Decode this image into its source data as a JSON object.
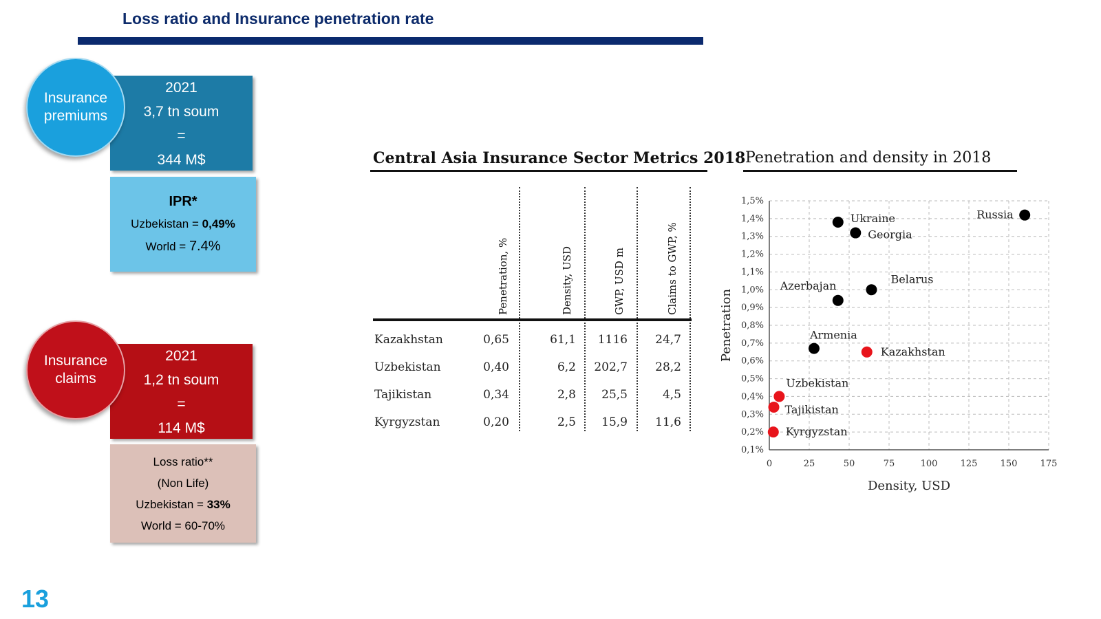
{
  "header": {
    "title": "Loss ratio and Insurance penetration rate"
  },
  "premiums": {
    "circle_line1": "Insurance",
    "circle_line2": "premiums",
    "year": "2021",
    "amount": "3,7 tn soum",
    "equals": "=",
    "usd": "344 M$"
  },
  "ipr": {
    "title": "IPR*",
    "uz_label": "Uzbekistan = ",
    "uz_value": "0,49%",
    "world_label": "World = ",
    "world_value": "7.4%"
  },
  "claims": {
    "circle_line1": "Insurance",
    "circle_line2": "claims",
    "year": "2021",
    "amount": "1,2 tn soum",
    "equals": "=",
    "usd": "114 M$"
  },
  "loss": {
    "line1": "Loss ratio**",
    "line2": "(Non Life)",
    "uz_label": "Uzbekistan = ",
    "uz_value": "33%",
    "world": "World = 60-70%"
  },
  "page_number": "13",
  "table": {
    "title": "Central Asia Insurance Sector Metrics 2018",
    "columns": [
      "Penetration, %",
      "Density, USD",
      "GWP, USD m",
      "Claims to GWP, %"
    ],
    "rows": [
      {
        "name": "Kazakhstan",
        "values": [
          "0,65",
          "61,1",
          "1116",
          "24,7"
        ]
      },
      {
        "name": "Uzbekistan",
        "values": [
          "0,40",
          "6,2",
          "202,7",
          "28,2"
        ]
      },
      {
        "name": "Tajikistan",
        "values": [
          "0,34",
          "2,8",
          "25,5",
          "4,5"
        ]
      },
      {
        "name": "Kyrgyzstan",
        "values": [
          "0,20",
          "2,5",
          "15,9",
          "11,6"
        ]
      }
    ]
  },
  "chart_data": {
    "type": "scatter",
    "title": "Penetration and density in 2018",
    "xlabel": "Density, USD",
    "ylabel": "Penetration",
    "xlim": [
      0,
      175
    ],
    "ylim": [
      0.1,
      1.5
    ],
    "x_ticks": [
      "0",
      "25",
      "50",
      "75",
      "100",
      "125",
      "150",
      "175"
    ],
    "y_ticks": [
      "0,1%",
      "0,2%",
      "0,3%",
      "0,4%",
      "0,5%",
      "0,6%",
      "0,7%",
      "0,8%",
      "0,9%",
      "1,0%",
      "1,1%",
      "1,2%",
      "1,3%",
      "1,4%",
      "1,5%"
    ],
    "grid": true,
    "colors": {
      "highlight": "#e8141b",
      "other": "#000000"
    },
    "points": [
      {
        "label": "Russia",
        "x": 160,
        "y": 1.42,
        "highlight": false
      },
      {
        "label": "Ukraine",
        "x": 43,
        "y": 1.38,
        "highlight": false
      },
      {
        "label": "Georgia",
        "x": 54,
        "y": 1.32,
        "highlight": false
      },
      {
        "label": "Belarus",
        "x": 64,
        "y": 1.0,
        "highlight": false
      },
      {
        "label": "Azerbajan",
        "x": 43,
        "y": 0.94,
        "highlight": false
      },
      {
        "label": "Armenia",
        "x": 28,
        "y": 0.67,
        "highlight": false
      },
      {
        "label": "Kazakhstan",
        "x": 61.1,
        "y": 0.65,
        "highlight": true
      },
      {
        "label": "Uzbekistan",
        "x": 6.2,
        "y": 0.4,
        "highlight": true
      },
      {
        "label": "Tajikistan",
        "x": 2.8,
        "y": 0.34,
        "highlight": true
      },
      {
        "label": "Kyrgyzstan",
        "x": 2.5,
        "y": 0.2,
        "highlight": true
      }
    ]
  }
}
